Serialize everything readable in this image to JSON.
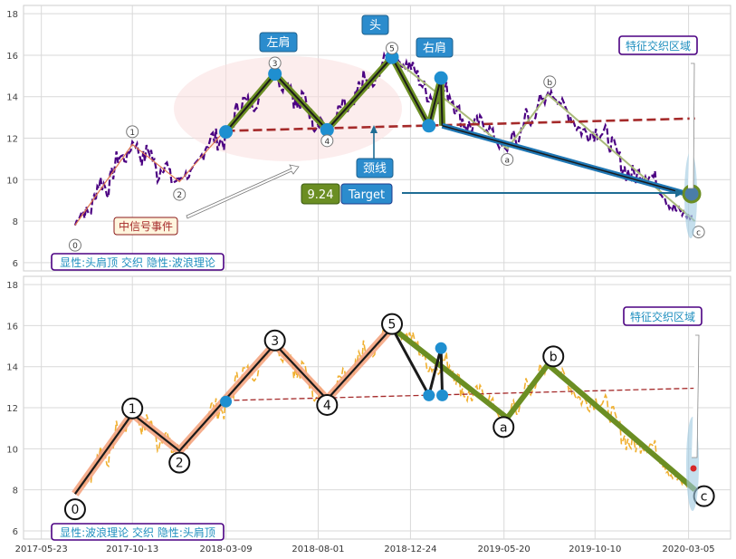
{
  "chart_data": [
    {
      "type": "line",
      "panel": "top",
      "ylim": [
        5.6,
        18.4
      ],
      "yticks": [
        6,
        8,
        10,
        12,
        14,
        16,
        18
      ],
      "grid": true,
      "colors": {
        "price": "#4b0082",
        "pattern": "#6b8e23",
        "neckline": "#a52a2a",
        "target_line": "#1f77b4",
        "wave": "#a9ba7a"
      },
      "wave_points": [
        {
          "label": "0",
          "date": "2017-07-15",
          "value": 7.8
        },
        {
          "label": "1",
          "date": "2017-10-13",
          "value": 11.7
        },
        {
          "label": "2",
          "date": "2017-12-26",
          "value": 9.9
        },
        {
          "label": "3",
          "date": "2018-05-25",
          "value": 15.1
        },
        {
          "label": "4",
          "date": "2018-08-15",
          "value": 12.4
        },
        {
          "label": "5",
          "date": "2018-11-25",
          "value": 15.9
        },
        {
          "label": "a",
          "date": "2019-05-25",
          "value": 11.5
        },
        {
          "label": "b",
          "date": "2019-07-28",
          "value": 14.1
        },
        {
          "label": "c",
          "date": "2020-03-15",
          "value": 8.0
        }
      ],
      "hs_points": [
        {
          "date": "2018-03-09",
          "value": 12.3
        },
        {
          "date": "2018-05-25",
          "value": 15.1
        },
        {
          "date": "2018-08-15",
          "value": 12.4
        },
        {
          "date": "2018-11-25",
          "value": 15.9
        },
        {
          "date": "2019-01-22",
          "value": 12.6
        },
        {
          "date": "2019-02-10",
          "value": 14.9
        },
        {
          "date": "2019-02-12",
          "value": 12.6
        }
      ],
      "neckline": [
        {
          "date": "2018-03-09",
          "value": 12.35
        },
        {
          "date": "2020-03-15",
          "value": 12.95
        }
      ],
      "target_value": 9.24,
      "target_line": [
        {
          "date": "2019-02-12",
          "value": 12.6
        },
        {
          "date": "2020-03-15",
          "value": 9.2
        }
      ],
      "annotations": {
        "left_shoulder": "左肩",
        "head": "头",
        "right_shoulder": "右肩",
        "neckline": "颈线",
        "target_value": "9.24",
        "target_label": "Target",
        "signal_event": "中信号事件",
        "feature_zone": "特征交织区域",
        "legend": "显性:头肩顶 交织 隐性:波浪理论"
      }
    },
    {
      "type": "line",
      "panel": "bottom",
      "ylim": [
        5.6,
        18.4
      ],
      "yticks": [
        6,
        8,
        10,
        12,
        14,
        16,
        18
      ],
      "grid": true,
      "colors": {
        "price": "#f0b030",
        "wave_up": "#f4a582",
        "wave_down": "#6b8e23",
        "wave_core": "#1a1a1a",
        "neckline": "#a52a2a"
      },
      "x_tick_labels": [
        "2017-05-23",
        "2017-10-13",
        "2018-03-09",
        "2018-08-01",
        "2018-12-24",
        "2019-05-20",
        "2019-10-10",
        "2020-03-05"
      ],
      "annotations": {
        "feature_zone": "特征交织区域",
        "legend": "显性:波浪理论 交织 隐性:头肩顶"
      }
    }
  ]
}
